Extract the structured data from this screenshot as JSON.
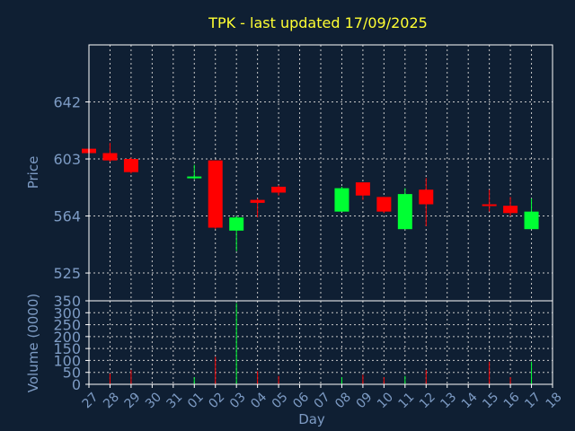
{
  "chart_data": {
    "type": "candlestick",
    "title": "TPK - last updated 17/09/2025",
    "xlabel": "Day",
    "ylabel_price": "Price",
    "ylabel_volume": "Volume (0000)",
    "x_ticks": [
      "27",
      "28",
      "29",
      "30",
      "31",
      "01",
      "02",
      "03",
      "04",
      "05",
      "06",
      "07",
      "08",
      "09",
      "10",
      "11",
      "12",
      "13",
      "14",
      "15",
      "16",
      "17",
      "18"
    ],
    "price_ticks": [
      525,
      564,
      603,
      642
    ],
    "price_range": [
      506,
      681
    ],
    "volume_ticks": [
      0,
      50,
      100,
      150,
      200,
      250,
      300,
      350
    ],
    "volume_range": [
      0,
      350
    ],
    "grid": true,
    "colors": {
      "up": "#00ff33",
      "down": "#ff0000",
      "background": "#0f1f33",
      "text": "#7d9bc4",
      "title": "#ffff33",
      "frame": "#ffffff"
    },
    "candles": [
      {
        "day": "27",
        "open": 610,
        "high": 611,
        "low": 606,
        "close": 607
      },
      {
        "day": "28",
        "open": 607,
        "high": 614,
        "low": 601,
        "close": 602
      },
      {
        "day": "29",
        "open": 603,
        "high": 604,
        "low": 593,
        "close": 594
      },
      {
        "day": "01",
        "open": 591,
        "high": 599,
        "low": 589,
        "close": 591
      },
      {
        "day": "02",
        "open": 602,
        "high": 602,
        "low": 555,
        "close": 556
      },
      {
        "day": "03",
        "open": 554,
        "high": 564,
        "low": 540,
        "close": 563
      },
      {
        "day": "04",
        "open": 575,
        "high": 576,
        "low": 563,
        "close": 573
      },
      {
        "day": "05",
        "open": 584,
        "high": 585,
        "low": 578,
        "close": 580
      },
      {
        "day": "08",
        "open": 567,
        "high": 584,
        "low": 567,
        "close": 583
      },
      {
        "day": "09",
        "open": 587,
        "high": 587,
        "low": 575,
        "close": 578
      },
      {
        "day": "10",
        "open": 577,
        "high": 577,
        "low": 566,
        "close": 567
      },
      {
        "day": "11",
        "open": 555,
        "high": 583,
        "low": 555,
        "close": 579
      },
      {
        "day": "12",
        "open": 582,
        "high": 590,
        "low": 557,
        "close": 572
      },
      {
        "day": "15",
        "open": 572,
        "high": 582,
        "low": 567,
        "close": 571
      },
      {
        "day": "16",
        "open": 571,
        "high": 577,
        "low": 564,
        "close": 566
      },
      {
        "day": "17",
        "open": 555,
        "high": 576,
        "low": 555,
        "close": 567
      }
    ],
    "volume": [
      {
        "day": "27",
        "value": 3,
        "dir": "down"
      },
      {
        "day": "28",
        "value": 45,
        "dir": "down"
      },
      {
        "day": "29",
        "value": 60,
        "dir": "down"
      },
      {
        "day": "01",
        "value": 30,
        "dir": "up"
      },
      {
        "day": "02",
        "value": 115,
        "dir": "down"
      },
      {
        "day": "03",
        "value": 340,
        "dir": "up"
      },
      {
        "day": "04",
        "value": 55,
        "dir": "down"
      },
      {
        "day": "05",
        "value": 35,
        "dir": "down"
      },
      {
        "day": "08",
        "value": 30,
        "dir": "up"
      },
      {
        "day": "09",
        "value": 40,
        "dir": "down"
      },
      {
        "day": "10",
        "value": 30,
        "dir": "down"
      },
      {
        "day": "11",
        "value": 35,
        "dir": "up"
      },
      {
        "day": "12",
        "value": 60,
        "dir": "down"
      },
      {
        "day": "15",
        "value": 95,
        "dir": "down"
      },
      {
        "day": "16",
        "value": 30,
        "dir": "down"
      },
      {
        "day": "17",
        "value": 95,
        "dir": "up"
      }
    ]
  }
}
